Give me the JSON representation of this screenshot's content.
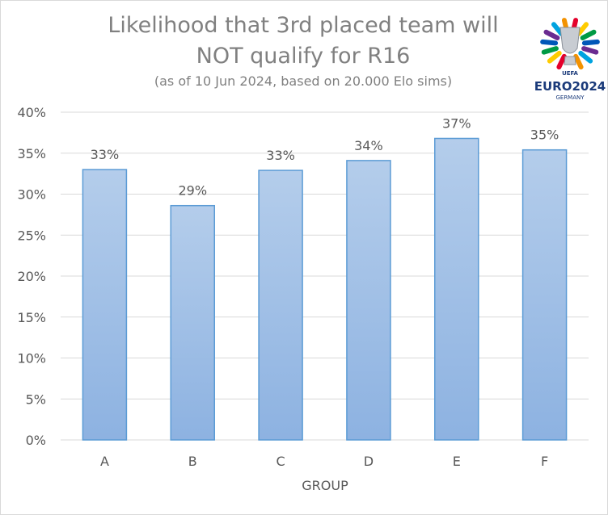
{
  "chart_data": {
    "type": "bar",
    "title_line1": "Likelihood that 3rd placed team will",
    "title_line2": "NOT qualify for R16",
    "subtitle": "(as of 10 Jun 2024, based on 20.000 Elo sims)",
    "xlabel": "GROUP",
    "ylabel": "",
    "categories": [
      "A",
      "B",
      "C",
      "D",
      "E",
      "F"
    ],
    "values": [
      33.0,
      28.6,
      32.9,
      34.1,
      36.8,
      35.4
    ],
    "data_labels": [
      "33%",
      "29%",
      "33%",
      "34%",
      "37%",
      "35%"
    ],
    "ylim": [
      0,
      40
    ],
    "yticks": [
      {
        "value": 0,
        "label": "0%"
      },
      {
        "value": 5,
        "label": "5%"
      },
      {
        "value": 10,
        "label": "10%"
      },
      {
        "value": 15,
        "label": "15%"
      },
      {
        "value": 20,
        "label": "20%"
      },
      {
        "value": 25,
        "label": "25%"
      },
      {
        "value": 30,
        "label": "30%"
      },
      {
        "value": 35,
        "label": "35%"
      },
      {
        "value": 40,
        "label": "40%"
      }
    ],
    "grid": true,
    "bar_color_top": "#b4cdeb",
    "bar_color_bottom": "#8db2e1",
    "bar_border": "#5b9bd5"
  },
  "logo": {
    "uefa": "UEFA",
    "euro": "EURO2024",
    "country": "GERMANY",
    "colors": [
      "#e4002b",
      "#ffcc00",
      "#009a44",
      "#0057b8",
      "#6a2c91",
      "#00a3e0",
      "#f39200"
    ]
  }
}
